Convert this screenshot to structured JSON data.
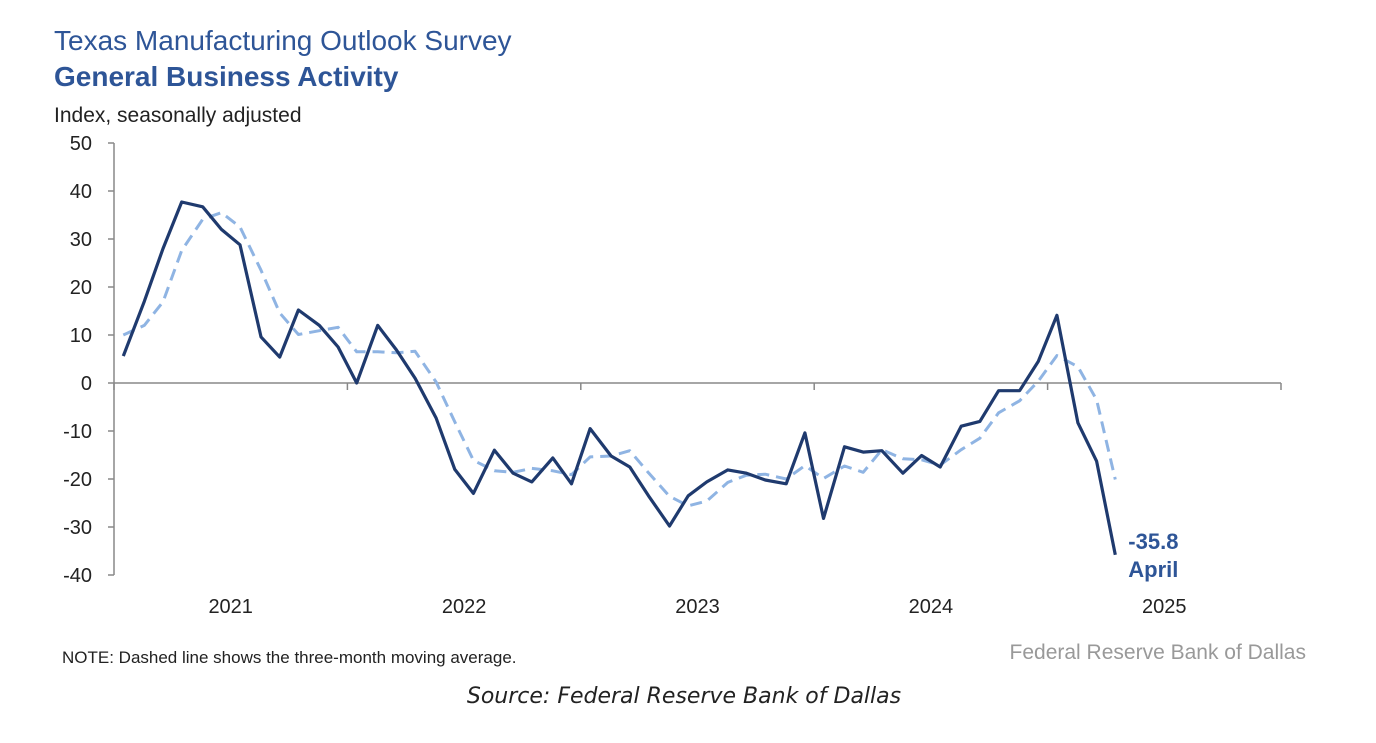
{
  "chart_data": {
    "type": "line",
    "title": "Texas Manufacturing Outlook Survey",
    "subtitle": "General Business Activity",
    "y_label": "Index, seasonally adjusted",
    "note": "NOTE: Dashed line shows the three-month moving average.",
    "credit": "Federal Reserve Bank of Dallas",
    "source": "Source: Federal Reserve Bank of Dallas",
    "annotation": "April",
    "x": [
      2021.04,
      2021.13,
      2021.21,
      2021.29,
      2021.38,
      2021.46,
      2021.54,
      2021.63,
      2021.71,
      2021.79,
      2021.88,
      2021.96,
      2022.04,
      2022.13,
      2022.21,
      2022.29,
      2022.38,
      2022.46,
      2022.54,
      2022.63,
      2022.71,
      2022.79,
      2022.88,
      2022.96,
      2023.04,
      2023.13,
      2023.21,
      2023.29,
      2023.38,
      2023.46,
      2023.54,
      2023.63,
      2023.71,
      2023.79,
      2023.88,
      2023.96,
      2024.04,
      2024.13,
      2024.21,
      2024.29,
      2024.38,
      2024.46,
      2024.54,
      2024.63,
      2024.71,
      2024.79,
      2024.88,
      2024.96,
      2025.04,
      2025.13,
      2025.21,
      2025.29
    ],
    "series": [
      {
        "color": "#1f3a6e",
        "dashed": false,
        "values": [
          5.6,
          17,
          28,
          37.7,
          36.7,
          32,
          28.8,
          9.6,
          5.4,
          15.2,
          12,
          7.5,
          0,
          12,
          6.9,
          1,
          -7.3,
          -18,
          -23,
          -14,
          -18.8,
          -20.6,
          -15.6,
          -21,
          -9.5,
          -15.2,
          -17.5,
          -23.5,
          -29.8,
          -23.5,
          -20.6,
          -18.1,
          -18.8,
          -20.2,
          -21,
          -10.4,
          -28.2,
          -13.3,
          -14.4,
          -14.1,
          -18.8,
          -15.1,
          -17.5,
          -9,
          -8,
          -1.6,
          -1.6,
          4.5,
          14.1,
          -8.3,
          -16.3,
          -35.8
        ]
      },
      {
        "color": "#8fb4e3",
        "dashed": true,
        "values": [
          10,
          12,
          16.9,
          27.6,
          34.1,
          35.5,
          32.5,
          23.5,
          14.6,
          10.1,
          10.9,
          11.6,
          6.5,
          6.5,
          6.3,
          6.6,
          0.2,
          -8.1,
          -16.1,
          -18.3,
          -18.6,
          -17.8,
          -18.3,
          -19.1,
          -15.4,
          -15.2,
          -14.1,
          -18.7,
          -23.6,
          -25.6,
          -24.6,
          -20.7,
          -19.2,
          -19,
          -20,
          -17.2,
          -19.9,
          -17.3,
          -18.6,
          -13.9,
          -15.8,
          -16,
          -17.1,
          -13.9,
          -11.5,
          -6.2,
          -3.7,
          0.4,
          5.7,
          3.4,
          -3.5,
          -20.1
        ]
      }
    ],
    "xlim": [
      2021,
      2026
    ],
    "xticks": [
      2021,
      2022,
      2023,
      2024,
      2025
    ],
    "ylim": [
      -40,
      50
    ],
    "yticks": [
      -40,
      -30,
      -20,
      -10,
      0,
      10,
      20,
      30,
      40,
      50
    ],
    "grid": false
  }
}
